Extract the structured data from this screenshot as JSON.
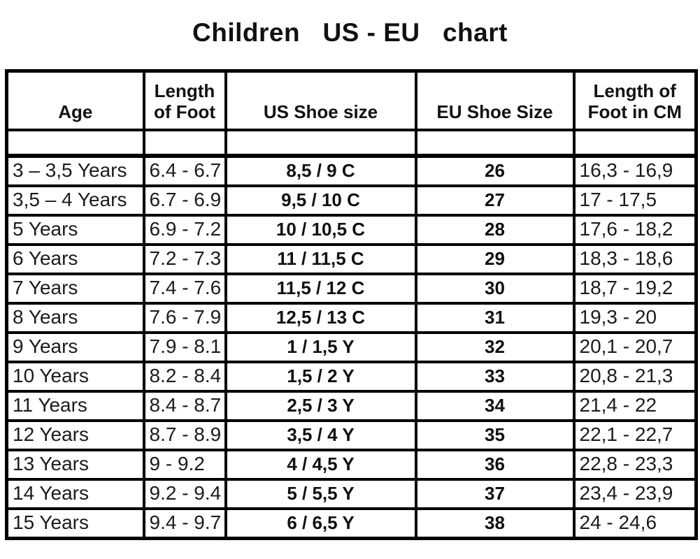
{
  "title": "Children   US - EU   chart",
  "table": {
    "column_keys": [
      "age",
      "length-of-foot",
      "us-shoe-size",
      "eu-shoe-size",
      "length-cm"
    ],
    "headers": [
      "Age",
      "Length of Foot",
      "US Shoe size",
      "EU Shoe Size",
      "Length of Foot in CM"
    ],
    "rows": [
      [
        "3 – 3,5 Years",
        "6.4 - 6.7",
        "8,5 / 9 C",
        "26",
        "16,3 - 16,9"
      ],
      [
        "3,5 – 4 Years",
        "6.7 - 6.9",
        "9,5 / 10 C",
        "27",
        "17 - 17,5"
      ],
      [
        "5 Years",
        "6.9 - 7.2",
        "10 / 10,5 C",
        "28",
        "17,6 - 18,2"
      ],
      [
        "6 Years",
        "7.2 - 7.3",
        "11 / 11,5 C",
        "29",
        "18,3 - 18,6"
      ],
      [
        "7 Years",
        "7.4 - 7.6",
        "11,5 / 12 C",
        "30",
        "18,7 - 19,2"
      ],
      [
        "8 Years",
        "7.6 - 7.9",
        "12,5 / 13 C",
        "31",
        "19,3 - 20"
      ],
      [
        "9 Years",
        "7.9 - 8.1",
        "1 / 1,5 Y",
        "32",
        "20,1 - 20,7"
      ],
      [
        "10 Years",
        "8.2 - 8.4",
        "1,5 / 2 Y",
        "33",
        "20,8 - 21,3"
      ],
      [
        "11 Years",
        "8.4 - 8.7",
        "2,5 / 3 Y",
        "34",
        "21,4 - 22"
      ],
      [
        "12 Years",
        "8.7 - 8.9",
        "3,5 / 4 Y",
        "35",
        "22,1 - 22,7"
      ],
      [
        "13 Years",
        "9 - 9.2",
        "4 / 4,5 Y",
        "36",
        "22,8 - 23,3"
      ],
      [
        "14 Years",
        "9.2 - 9.4",
        "5 / 5,5 Y",
        "37",
        "23,4 - 23,9"
      ],
      [
        "15 Years",
        "9.4 - 9.7",
        "6 / 6,5 Y",
        "38",
        "24 - 24,6"
      ]
    ]
  }
}
